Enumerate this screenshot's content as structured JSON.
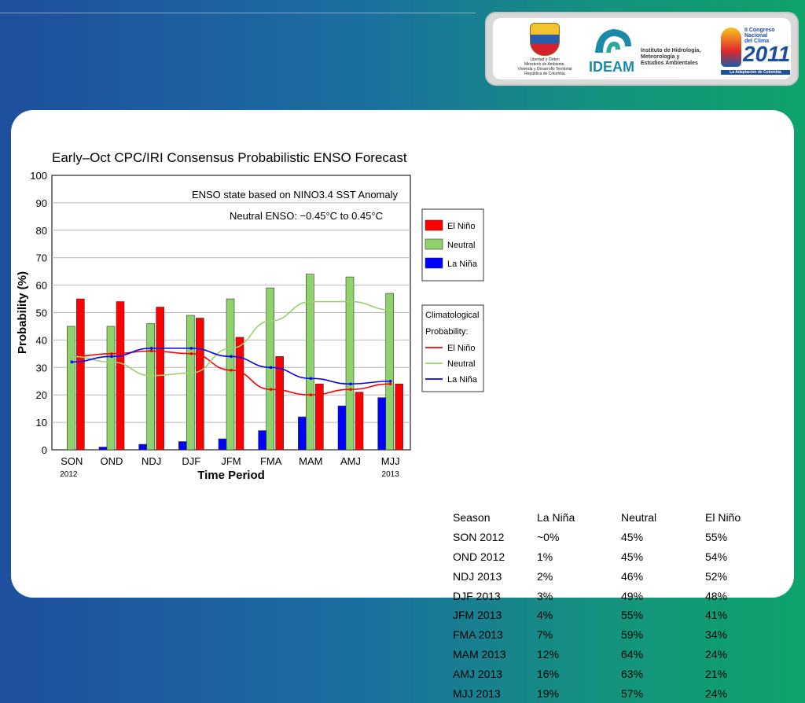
{
  "logos": {
    "ministerio_lines": [
      "Libertad y Orden",
      "Ministerio de Ambiente,",
      "Vivienda y Desarrollo Territorial",
      "República de Colombia"
    ],
    "ideam_word": "IDEAM",
    "ideam_desc": [
      "Instituto de Hidrología,",
      "Meteorología y",
      "Estudios Ambientales"
    ],
    "congreso_top": [
      "II Congreso",
      "Nacional",
      "del Clima"
    ],
    "congreso_year": "2011",
    "congreso_tagline": "La Adaptación de Colombia"
  },
  "chart_data": {
    "type": "bar",
    "title": "Early–Oct CPC/IRI Consensus Probabilistic ENSO Forecast",
    "annotation_1": "ENSO state based on NINO3.4 SST Anomaly",
    "annotation_2": "Neutral ENSO: −0.45°C to 0.45°C",
    "xlabel": "Time Period",
    "ylabel": "Probability (%)",
    "categories": [
      "SON",
      "OND",
      "NDJ",
      "DJF",
      "JFM",
      "FMA",
      "MAM",
      "AMJ",
      "MJJ"
    ],
    "year_start_label": "2012",
    "year_end_label": "2013",
    "ylim": [
      0,
      100
    ],
    "yticks": [
      0,
      10,
      20,
      30,
      40,
      50,
      60,
      70,
      80,
      90,
      100
    ],
    "grid": true,
    "series": [
      {
        "name": "El Niño",
        "color": "#ff0000",
        "values": [
          55,
          54,
          52,
          48,
          41,
          34,
          24,
          21,
          24
        ]
      },
      {
        "name": "Neutral",
        "color": "#8fd16a",
        "values": [
          45,
          45,
          46,
          49,
          55,
          59,
          64,
          63,
          57
        ]
      },
      {
        "name": "La Niña",
        "color": "#0000ff",
        "values": [
          0,
          1,
          2,
          3,
          4,
          7,
          12,
          16,
          19
        ]
      }
    ],
    "climatology_title": [
      "Climatological",
      "Probability:"
    ],
    "climatology": [
      {
        "name": "El Niño",
        "color": "#ff0000",
        "values": [
          34,
          35,
          36,
          35,
          29,
          22,
          20,
          22,
          24
        ]
      },
      {
        "name": "Neutral",
        "color": "#9ad36c",
        "values": [
          34,
          32,
          27,
          28,
          37,
          47,
          54,
          54,
          51
        ]
      },
      {
        "name": "La Niña",
        "color": "#0000ff",
        "values": [
          32,
          34,
          37,
          37,
          34,
          30,
          26,
          24,
          25
        ]
      }
    ],
    "legend_placement": "right"
  },
  "table": {
    "headers": [
      "Season",
      "La Niña",
      "Neutral",
      "El Niño"
    ],
    "rows": [
      [
        "SON 2012",
        "~0%",
        "45%",
        "55%"
      ],
      [
        "OND 2012",
        "1%",
        "45%",
        "54%"
      ],
      [
        "NDJ 2013",
        "2%",
        "46%",
        "52%"
      ],
      [
        "DJF 2013",
        "3%",
        "49%",
        "48%"
      ],
      [
        "JFM 2013",
        "4%",
        "55%",
        "41%"
      ],
      [
        "FMA 2013",
        "7%",
        "59%",
        "34%"
      ],
      [
        "MAM 2013",
        "12%",
        "64%",
        "24%"
      ],
      [
        "AMJ 2013",
        "16%",
        "63%",
        "21%"
      ],
      [
        "MJJ 2013",
        "19%",
        "57%",
        "24%"
      ]
    ]
  }
}
